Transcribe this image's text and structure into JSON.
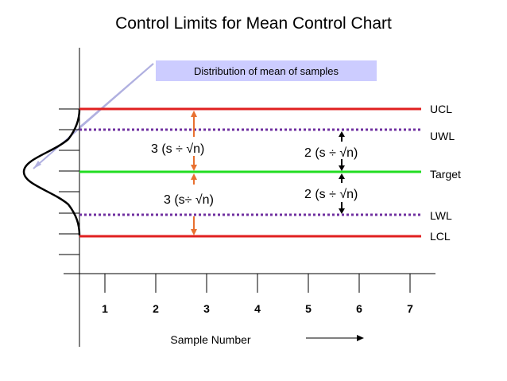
{
  "title": "Control Limits for Mean Control Chart",
  "banner": "Distribution of mean of samples",
  "limit_labels": {
    "ucl": "UCL",
    "uwl": "UWL",
    "target": "Target",
    "lwl": "LWL",
    "lcl": "LCL"
  },
  "annotations": {
    "upper_action": "3 (s ÷ √n)",
    "lower_action": "3 (s÷ √n)",
    "upper_warning": "2 (s ÷ √n)",
    "lower_warning": "2 (s ÷ √n)"
  },
  "x_axis": {
    "title": "Sample Number",
    "ticks": [
      "1",
      "2",
      "3",
      "4",
      "5",
      "6",
      "7"
    ]
  },
  "colors": {
    "action_line": "#e02020",
    "warning_line": "#7030a0",
    "target_line": "#22dd22",
    "arrow": "#e87030",
    "banner_fill": "#ccccff",
    "pointer": "#b0b0e0"
  }
}
